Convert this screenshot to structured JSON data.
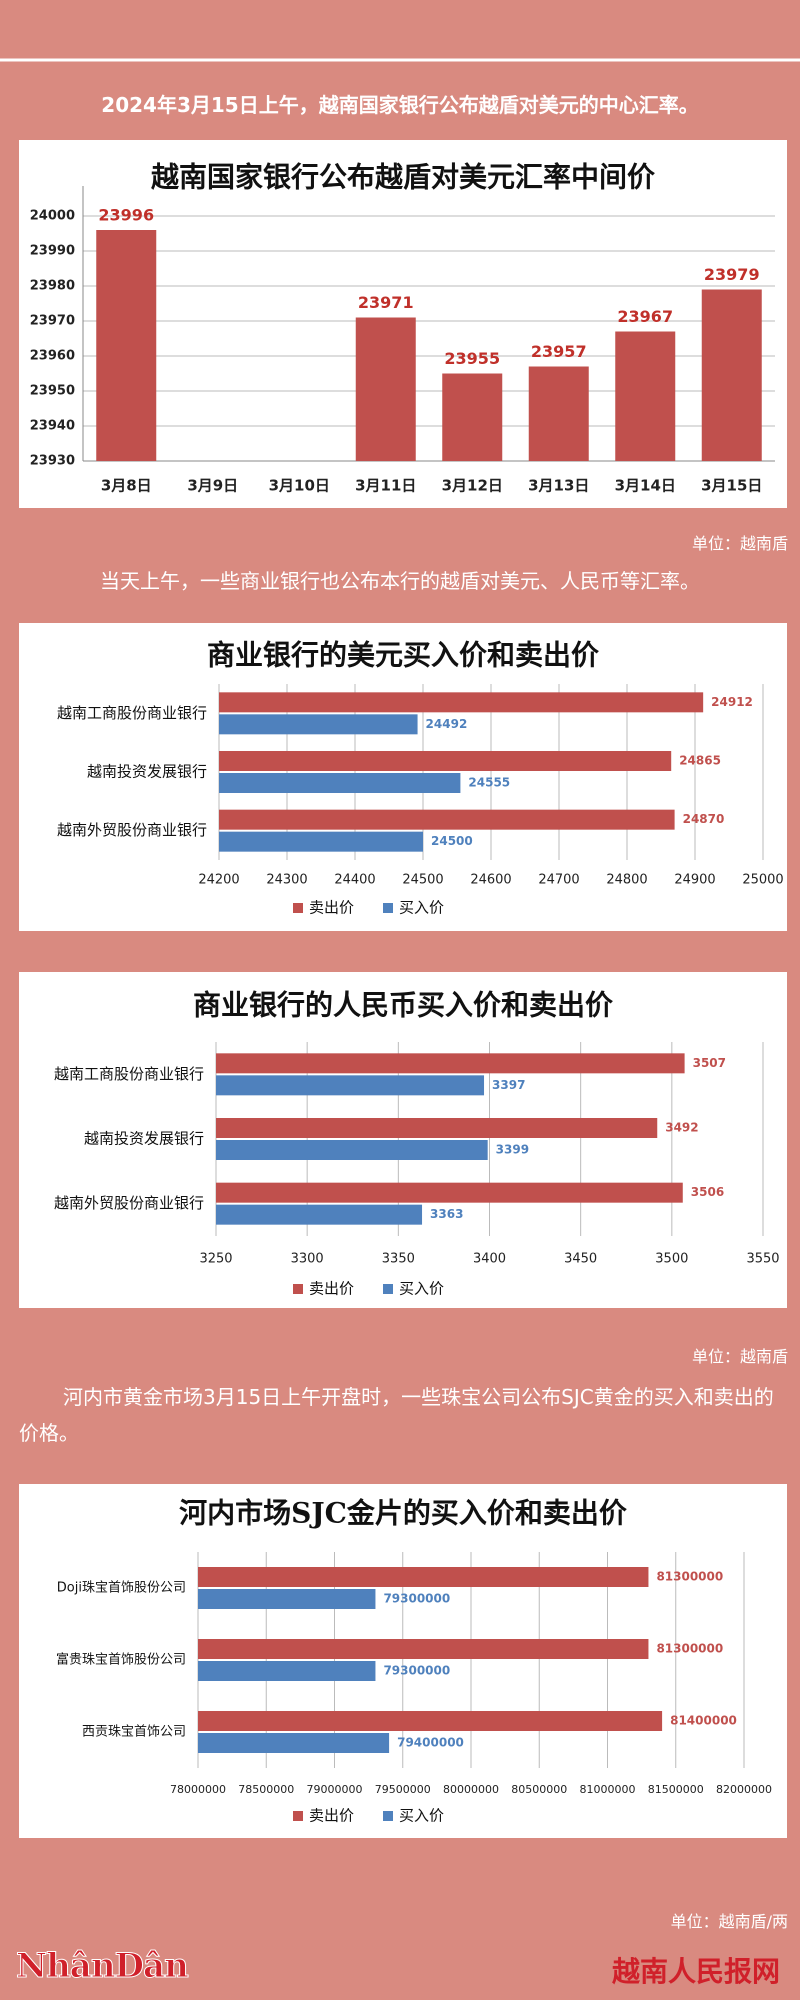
{
  "paragraphs": [
    "2024年3月15日上午，越南国家银行公布越盾对美元的中心汇率。",
    "当天上午，一些商业银行也公布本行的越盾对美元、人民币等汇率。",
    "河内市黄金市场3月15日上午开盘时，一些珠宝公司公布SJC黄金的买入和卖出的价格。"
  ],
  "units": [
    "单位：越南盾",
    "单位：越南盾",
    "单位：越南盾/两"
  ],
  "footer": {
    "logo": "NhânDân",
    "site": "越南人民报网"
  },
  "chart_data": [
    {
      "type": "bar",
      "title": "越南国家银行公布越盾对美元汇率中间价",
      "categories": [
        "3月8日",
        "3月9日",
        "3月10日",
        "3月11日",
        "3月12日",
        "3月13日",
        "3月14日",
        "3月15日"
      ],
      "values": [
        23996,
        null,
        null,
        23971,
        23955,
        23957,
        23967,
        23979
      ],
      "color": "#c0504d",
      "ylim": [
        23930,
        24000
      ],
      "yticks": [
        23930,
        23940,
        23950,
        23960,
        23970,
        23980,
        23990,
        24000
      ],
      "grid": true
    },
    {
      "type": "hbar",
      "title": "商业银行的美元买入价和卖出价",
      "categories": [
        "越南工商股份商业银行",
        "越南投资发展银行",
        "越南外贸股份商业银行"
      ],
      "series": [
        {
          "name": "卖出价",
          "color": "#c0504d",
          "values": [
            24912,
            24865,
            24870
          ]
        },
        {
          "name": "买入价",
          "color": "#4f81bd",
          "values": [
            24492,
            24555,
            24500
          ]
        }
      ],
      "xlim": [
        24200,
        25000
      ],
      "xticks": [
        24200,
        24300,
        24400,
        24500,
        24600,
        24700,
        24800,
        24900,
        25000
      ],
      "grid": true,
      "legend": "bottom"
    },
    {
      "type": "hbar",
      "title": "商业银行的人民币买入价和卖出价",
      "categories": [
        "越南工商股份商业银行",
        "越南投资发展银行",
        "越南外贸股份商业银行"
      ],
      "series": [
        {
          "name": "卖出价",
          "color": "#c0504d",
          "values": [
            3507,
            3492,
            3506
          ]
        },
        {
          "name": "买入价",
          "color": "#4f81bd",
          "values": [
            3397,
            3399,
            3363
          ]
        }
      ],
      "xlim": [
        3250,
        3550
      ],
      "xticks": [
        3250,
        3300,
        3350,
        3400,
        3450,
        3500,
        3550
      ],
      "grid": true,
      "legend": "bottom"
    },
    {
      "type": "hbar",
      "title": "河内市场SJC金片的买入价和卖出价",
      "categories": [
        "Doji珠宝首饰股份公司",
        "富贵珠宝首饰股份公司",
        "西贡珠宝首饰公司"
      ],
      "series": [
        {
          "name": "卖出价",
          "color": "#c0504d",
          "values": [
            81300000,
            81300000,
            81400000
          ]
        },
        {
          "name": "买入价",
          "color": "#4f81bd",
          "values": [
            79300000,
            79300000,
            79400000
          ]
        }
      ],
      "xlim": [
        78000000,
        82000000
      ],
      "xticks": [
        78000000,
        78500000,
        79000000,
        79500000,
        80000000,
        80500000,
        81000000,
        81500000,
        82000000
      ],
      "grid": true,
      "legend": "bottom"
    }
  ]
}
